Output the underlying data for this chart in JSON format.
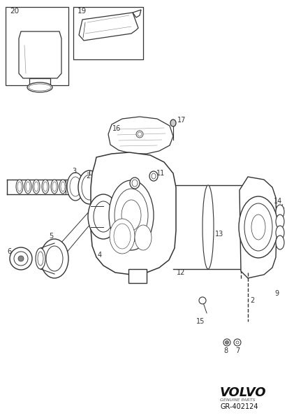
{
  "bg_color": "#ffffff",
  "line_color": "#333333",
  "lw": 0.9,
  "volvo_text": "VOLVO",
  "genuine_parts_text": "GENUINE PARTS",
  "part_number": "GR-402124",
  "figsize": [
    4.11,
    6.01
  ],
  "dpi": 100
}
